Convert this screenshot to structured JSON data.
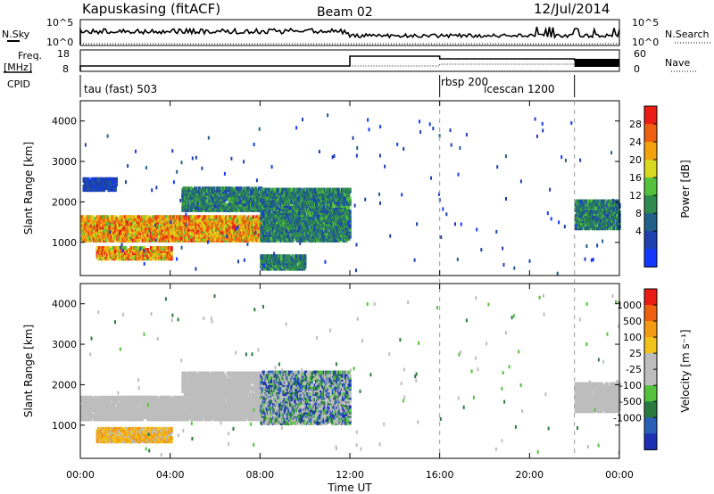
{
  "header": {
    "station": "Kapuskasing (fitACF)",
    "beam": "Beam 02",
    "date": "12/Jul/2014"
  },
  "noise_panel": {
    "left_label": "N.Sky",
    "right_label": "N.Search",
    "left_ticks": [
      "10^5",
      "10^0"
    ],
    "right_ticks": [
      "10^5",
      "10^0"
    ]
  },
  "freq_panel": {
    "left_label_1": "Freq.",
    "left_label_2": "[MHz]",
    "right_label": "Nave",
    "left_ticks": [
      "18",
      "8"
    ],
    "right_ticks": [
      "60",
      "0"
    ]
  },
  "cpid_panel": {
    "label": "CPID",
    "modes": [
      {
        "name": "tau (fast) 503",
        "start": 0
      },
      {
        "name": "rbsp 200",
        "start": 16
      },
      {
        "name": "icescan 1200",
        "start": 18
      },
      {
        "name": "",
        "start": 22
      }
    ]
  },
  "power_panel": {
    "ylabel": "Slant Range [km]",
    "cbar_label": "Power [dB]",
    "cbar_ticks": [
      "28",
      "24",
      "20",
      "16",
      "12",
      "8",
      "4"
    ],
    "cbar_colors": [
      "#1238ff",
      "#1d3fb0",
      "#1f5f8a",
      "#2e8a4e",
      "#54c23c",
      "#d8d820",
      "#f2a20c",
      "#ee6010",
      "#ea1c14"
    ]
  },
  "velocity_panel": {
    "ylabel": "Slant Range [km]",
    "cbar_label": "Velocity [m s⁻¹]",
    "cbar_ticks": [
      "1000",
      "500",
      "100",
      "25",
      "-25",
      "-100",
      "-500",
      "-1000"
    ],
    "cbar_colors": [
      "#1a2fb4",
      "#2a5fb8",
      "#287a40",
      "#54c23c",
      "#bdbdbd",
      "#bdbdbd",
      "#f2c21a",
      "#f29a12",
      "#ee6010",
      "#ea1c14"
    ]
  },
  "chart_data": {
    "type": "heatmap",
    "xlabel": "Time UT",
    "x_ticks": [
      "00:00",
      "04:00",
      "08:00",
      "12:00",
      "16:00",
      "20:00",
      "00:00"
    ],
    "xlim": [
      0,
      24
    ],
    "y_ticks": [
      "4000",
      "3000",
      "2000",
      "1000"
    ],
    "ylim": [
      180,
      4500
    ],
    "power_regions": [
      {
        "t0": 0.0,
        "t1": 8.0,
        "r0": 1000,
        "r1": 1600,
        "level": "high"
      },
      {
        "t0": 0.7,
        "t1": 4.0,
        "r0": 550,
        "r1": 850,
        "level": "high"
      },
      {
        "t0": 0.1,
        "t1": 1.6,
        "r0": 2250,
        "r1": 2550,
        "level": "low"
      },
      {
        "t0": 4.5,
        "t1": 8.0,
        "r0": 1750,
        "r1": 2300,
        "level": "mid"
      },
      {
        "t0": 8.0,
        "t1": 12.0,
        "r0": 1000,
        "r1": 2300,
        "level": "mid"
      },
      {
        "t0": 8.0,
        "t1": 10.0,
        "r0": 300,
        "r1": 650,
        "level": "mid"
      },
      {
        "t0": 22.0,
        "t1": 24.0,
        "r0": 1300,
        "r1": 2000,
        "level": "mid"
      }
    ],
    "velocity_regions": [
      {
        "t0": 0.0,
        "t1": 8.0,
        "r0": 1100,
        "r1": 1650,
        "level": "low"
      },
      {
        "t0": 0.7,
        "t1": 4.0,
        "r0": 550,
        "r1": 900,
        "level": "neg"
      },
      {
        "t0": 4.5,
        "t1": 8.0,
        "r0": 1700,
        "r1": 2250,
        "level": "low"
      },
      {
        "t0": 8.0,
        "t1": 12.0,
        "r0": 1000,
        "r1": 2300,
        "level": "mix"
      },
      {
        "t0": 22.0,
        "t1": 24.0,
        "r0": 1300,
        "r1": 2000,
        "level": "low"
      }
    ]
  }
}
